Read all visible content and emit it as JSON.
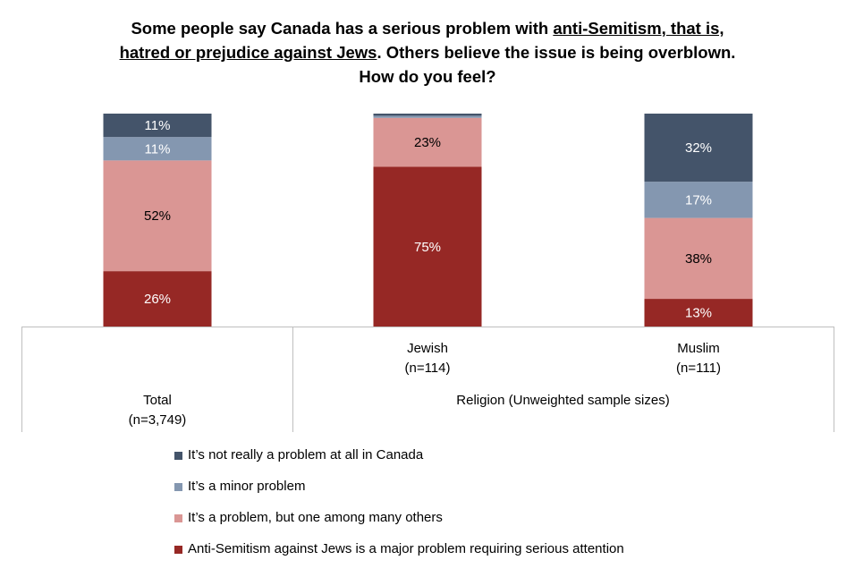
{
  "title": {
    "part1": "Some people say Canada has a serious problem with ",
    "part2": "anti-Semitism, that is,",
    "part3": "hatred or prejudice against Jews",
    "part4": ". Others believe the issue is being overblown.",
    "part5": "How do you feel?"
  },
  "chart_data": {
    "type": "bar",
    "stacked": true,
    "percent": true,
    "categories": [
      "Total",
      "Jewish",
      "Muslim"
    ],
    "category_sublabels": [
      "(n=3,749)",
      "(n=114)",
      "(n=111)"
    ],
    "group_label": "Religion (Unweighted sample sizes)",
    "series": [
      {
        "name": "Anti-Semitism against Jews is a major problem requiring serious attention",
        "color": "#962825",
        "values": [
          26,
          75,
          13
        ],
        "labels": [
          "26%",
          "75%",
          "13%"
        ]
      },
      {
        "name": "It’s a problem, but one among many others",
        "color": "#DA9694",
        "values": [
          52,
          23,
          38
        ],
        "labels": [
          "52%",
          "23%",
          "38%"
        ]
      },
      {
        "name": "It’s a minor problem",
        "color": "#8497B0",
        "values": [
          11,
          1,
          17
        ],
        "labels": [
          "11%",
          "",
          "17%"
        ]
      },
      {
        "name": "It’s not really a problem at all in Canada",
        "color": "#44546A",
        "values": [
          11,
          1,
          32
        ],
        "labels": [
          "11%",
          "",
          "32%"
        ]
      }
    ],
    "ylim": [
      0,
      100
    ],
    "legend_position": "bottom"
  }
}
